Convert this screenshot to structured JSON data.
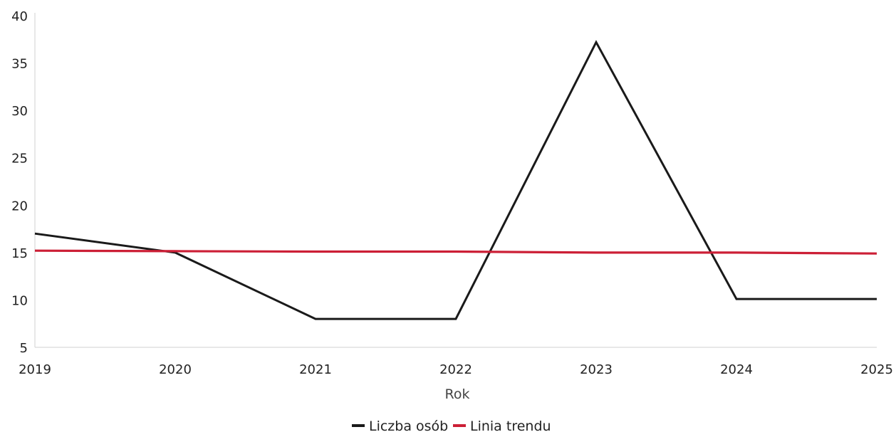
{
  "chart_data": {
    "type": "line",
    "title": "",
    "xlabel": "Rok",
    "ylabel": "",
    "x": [
      "2019",
      "2020",
      "2021",
      "2022",
      "2023",
      "2024",
      "2025"
    ],
    "ylim": [
      5,
      40
    ],
    "yticks": [
      5,
      10,
      15,
      20,
      25,
      30,
      35,
      40
    ],
    "grid": false,
    "legend_position": "bottom",
    "series": [
      {
        "name": "Liczba osób",
        "color": "#1a1a1a",
        "values": [
          17.0,
          15.0,
          8.0,
          8.0,
          37.2,
          10.1,
          10.1
        ]
      },
      {
        "name": "Linia trendu",
        "color": "#cc1f36",
        "values": [
          15.2,
          15.15,
          15.1,
          15.1,
          15.0,
          15.0,
          14.9
        ]
      }
    ]
  }
}
